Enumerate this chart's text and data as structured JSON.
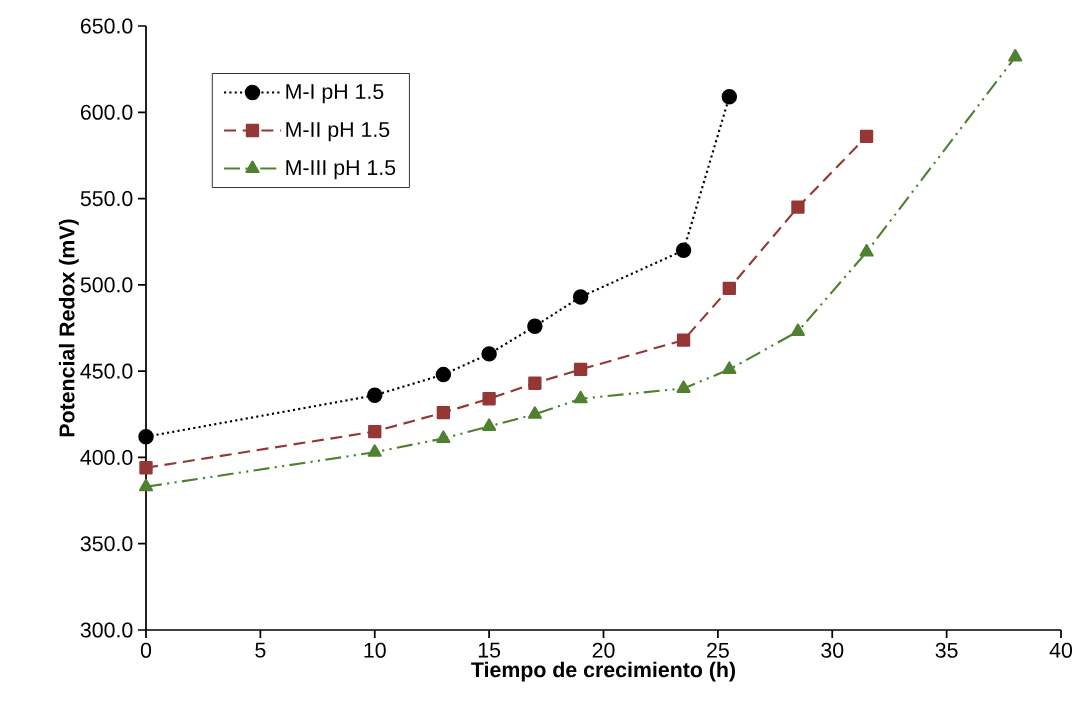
{
  "chart_data": {
    "type": "line",
    "xlabel": "Tiempo de crecimiento (h)",
    "ylabel": "Potencial Redox (mV)",
    "xlim": [
      0,
      40
    ],
    "xticks": [
      0,
      5,
      10,
      15,
      20,
      25,
      30,
      35,
      40
    ],
    "ylim": [
      300,
      650
    ],
    "yticks": [
      {
        "value": 300,
        "label": "300.0"
      },
      {
        "value": 350,
        "label": "350.0"
      },
      {
        "value": 400,
        "label": "400.0"
      },
      {
        "value": 450,
        "label": "450.0"
      },
      {
        "value": 500,
        "label": "500.0"
      },
      {
        "value": 550,
        "label": "550.0"
      },
      {
        "value": 600,
        "label": "600.0"
      },
      {
        "value": 650,
        "label": "650.0"
      }
    ],
    "grid": false,
    "legend": "top left",
    "series": [
      {
        "name": "M-I pH 1.5",
        "color": "#000000",
        "marker": "circle",
        "line_style": "dotted",
        "x": [
          0,
          10,
          13,
          15,
          17,
          19,
          23.5,
          25.5
        ],
        "values": [
          412,
          436,
          448,
          460,
          476,
          493,
          520,
          609
        ]
      },
      {
        "name": "M-II pH 1.5",
        "color": "#953735",
        "marker": "square",
        "line_style": "dashed",
        "x": [
          0,
          10,
          13,
          15,
          17,
          19,
          23.5,
          25.5,
          28.5,
          31.5
        ],
        "values": [
          394,
          415,
          426,
          434,
          443,
          451,
          468,
          498,
          545,
          586
        ]
      },
      {
        "name": "M-III pH 1.5",
        "color": "#4f8130",
        "marker": "triangle",
        "line_style": "dash-dot-dot",
        "x": [
          0,
          10,
          13,
          15,
          17,
          19,
          23.5,
          25.5,
          28.5,
          31.5,
          38
        ],
        "values": [
          383,
          403,
          411,
          418,
          425,
          434,
          440,
          451,
          473,
          519,
          632
        ]
      }
    ]
  }
}
